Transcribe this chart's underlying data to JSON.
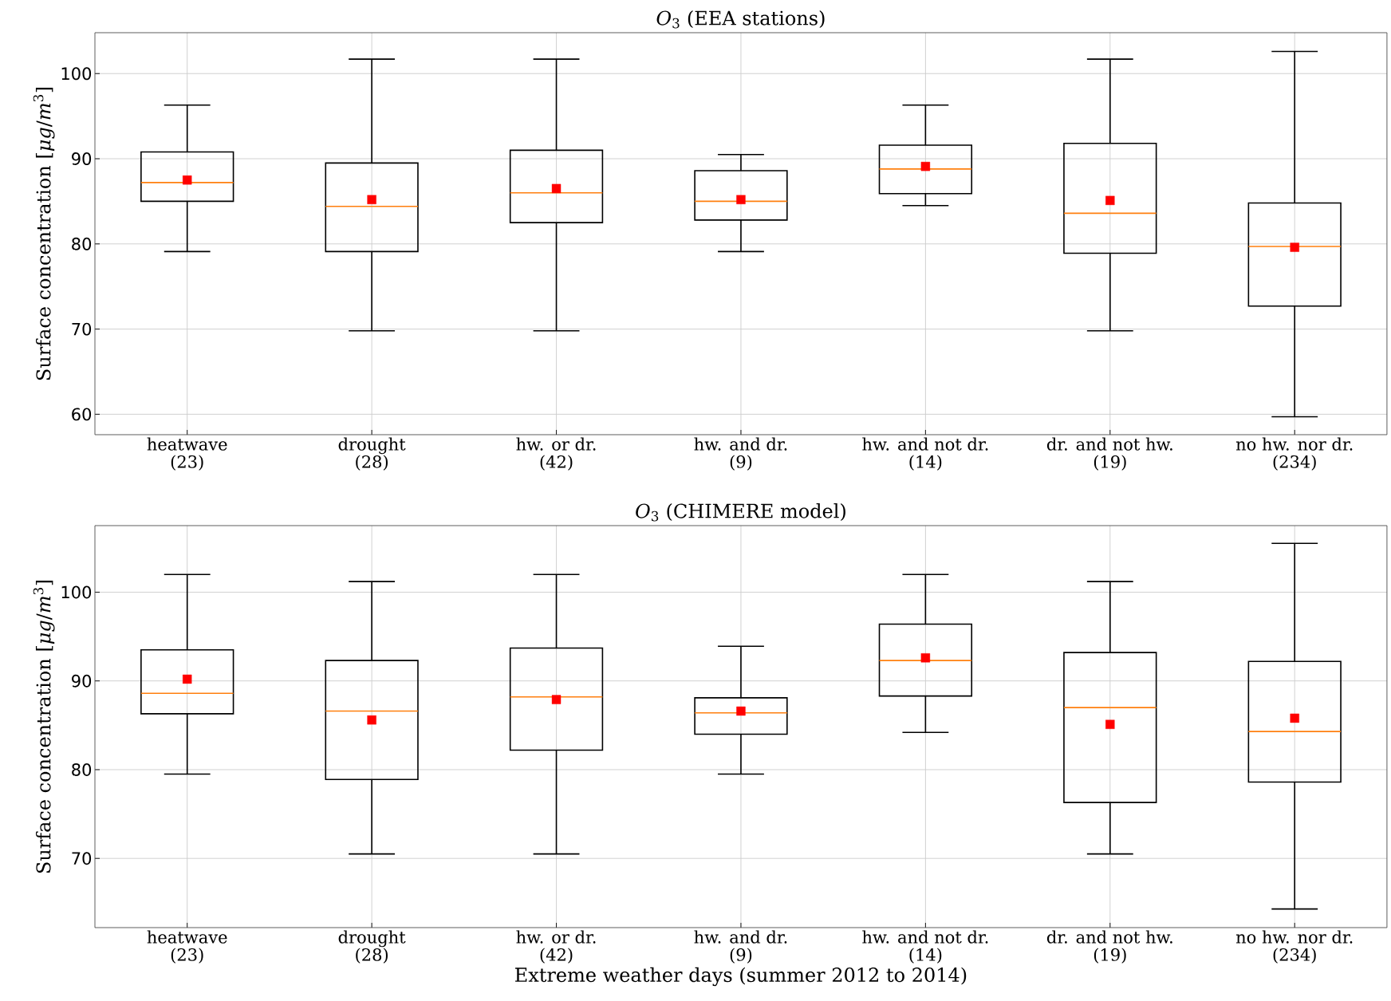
{
  "chart_data": [
    {
      "type": "box",
      "title": "*O*$_{3}$ (EEA stations)",
      "ylabel": "Surface concentration [*μg*/*m*$^{3}$]",
      "categories": [
        "heatwave (23)",
        "drought (28)",
        "hw. or dr. (42)",
        "hw. and dr. (9)",
        "hw. and not dr. (14)",
        "dr. and not hw. (19)",
        "no hw. nor dr. (234)"
      ],
      "boxes": [
        {
          "low": 79.1,
          "q1": 85.0,
          "median": 87.2,
          "q3": 90.8,
          "high": 96.3,
          "mean": 87.5
        },
        {
          "low": 69.8,
          "q1": 79.1,
          "median": 84.4,
          "q3": 89.5,
          "high": 101.7,
          "mean": 85.2
        },
        {
          "low": 69.8,
          "q1": 82.5,
          "median": 86.0,
          "q3": 91.0,
          "high": 101.7,
          "mean": 86.5
        },
        {
          "low": 79.1,
          "q1": 82.8,
          "median": 85.0,
          "q3": 88.6,
          "high": 90.5,
          "mean": 85.2
        },
        {
          "low": 84.5,
          "q1": 85.9,
          "median": 88.8,
          "q3": 91.6,
          "high": 96.3,
          "mean": 89.1
        },
        {
          "low": 69.8,
          "q1": 78.9,
          "median": 83.6,
          "q3": 91.8,
          "high": 101.7,
          "mean": 85.1
        },
        {
          "low": 59.7,
          "q1": 72.7,
          "median": 79.7,
          "q3": 84.8,
          "high": 102.6,
          "mean": 79.6
        }
      ],
      "ylim": [
        57.6,
        104.8
      ],
      "yticks": [
        60,
        70,
        80,
        90,
        100
      ],
      "grid": true
    },
    {
      "type": "box",
      "title": "*O*$_{3}$ (CHIMERE model)",
      "ylabel": "Surface concentration [*μg*/*m*$^{3}$]",
      "xlabel": "Extreme weather days (summer 2012 to 2014)",
      "categories": [
        "heatwave (23)",
        "drought (28)",
        "hw. or dr. (42)",
        "hw. and dr. (9)",
        "hw. and not dr. (14)",
        "dr. and not hw. (19)",
        "no hw. nor dr. (234)"
      ],
      "boxes": [
        {
          "low": 79.5,
          "q1": 86.3,
          "median": 88.6,
          "q3": 93.5,
          "high": 102.0,
          "mean": 90.2
        },
        {
          "low": 70.5,
          "q1": 78.9,
          "median": 86.6,
          "q3": 92.3,
          "high": 101.2,
          "mean": 85.6
        },
        {
          "low": 70.5,
          "q1": 82.2,
          "median": 88.2,
          "q3": 93.7,
          "high": 102.0,
          "mean": 87.9
        },
        {
          "low": 79.5,
          "q1": 84.0,
          "median": 86.4,
          "q3": 88.1,
          "high": 93.9,
          "mean": 86.6
        },
        {
          "low": 84.2,
          "q1": 88.3,
          "median": 92.3,
          "q3": 96.4,
          "high": 102.0,
          "mean": 92.6
        },
        {
          "low": 70.5,
          "q1": 76.3,
          "median": 87.0,
          "q3": 93.2,
          "high": 101.2,
          "mean": 85.1
        },
        {
          "low": 64.3,
          "q1": 78.6,
          "median": 84.3,
          "q3": 92.2,
          "high": 105.5,
          "mean": 85.8
        }
      ],
      "ylim": [
        62.2,
        107.5
      ],
      "yticks": [
        70,
        80,
        90,
        100
      ],
      "grid": true
    }
  ]
}
